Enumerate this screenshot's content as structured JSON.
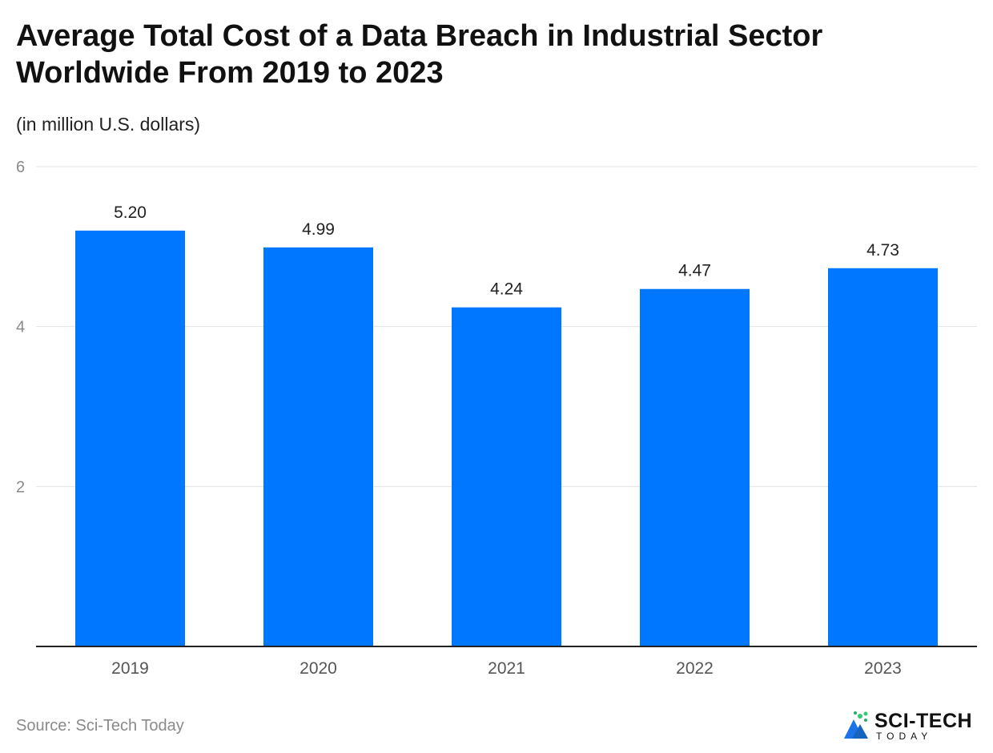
{
  "header": {
    "title": "Average Total Cost of a Data Breach in Industrial Sector Worldwide From 2019 to 2023",
    "subtitle": "(in million U.S. dollars)"
  },
  "footer": {
    "source": "Source: Sci-Tech Today",
    "logo_main": "SCI-TECH",
    "logo_sub": "TODAY"
  },
  "colors": {
    "bar": "#0077FF",
    "grid": "#e3e3e3",
    "axis": "#222222",
    "tick": "#8a8a8a",
    "label": "#222222",
    "logo_green": "#2ecc71",
    "logo_blue": "#1a73e8"
  },
  "chart_data": {
    "type": "bar",
    "title": "Average Total Cost of a Data Breach in Industrial Sector Worldwide From 2019 to 2023",
    "subtitle": "(in million U.S. dollars)",
    "categories": [
      "2019",
      "2020",
      "2021",
      "2022",
      "2023"
    ],
    "values": [
      5.2,
      4.99,
      4.24,
      4.47,
      4.73
    ],
    "value_labels": [
      "5.20",
      "4.99",
      "4.24",
      "4.47",
      "4.73"
    ],
    "xlabel": "",
    "ylabel": "",
    "ylim": [
      0,
      6
    ],
    "yticks": [
      2,
      4,
      6
    ],
    "grid": true,
    "legend": "none"
  }
}
